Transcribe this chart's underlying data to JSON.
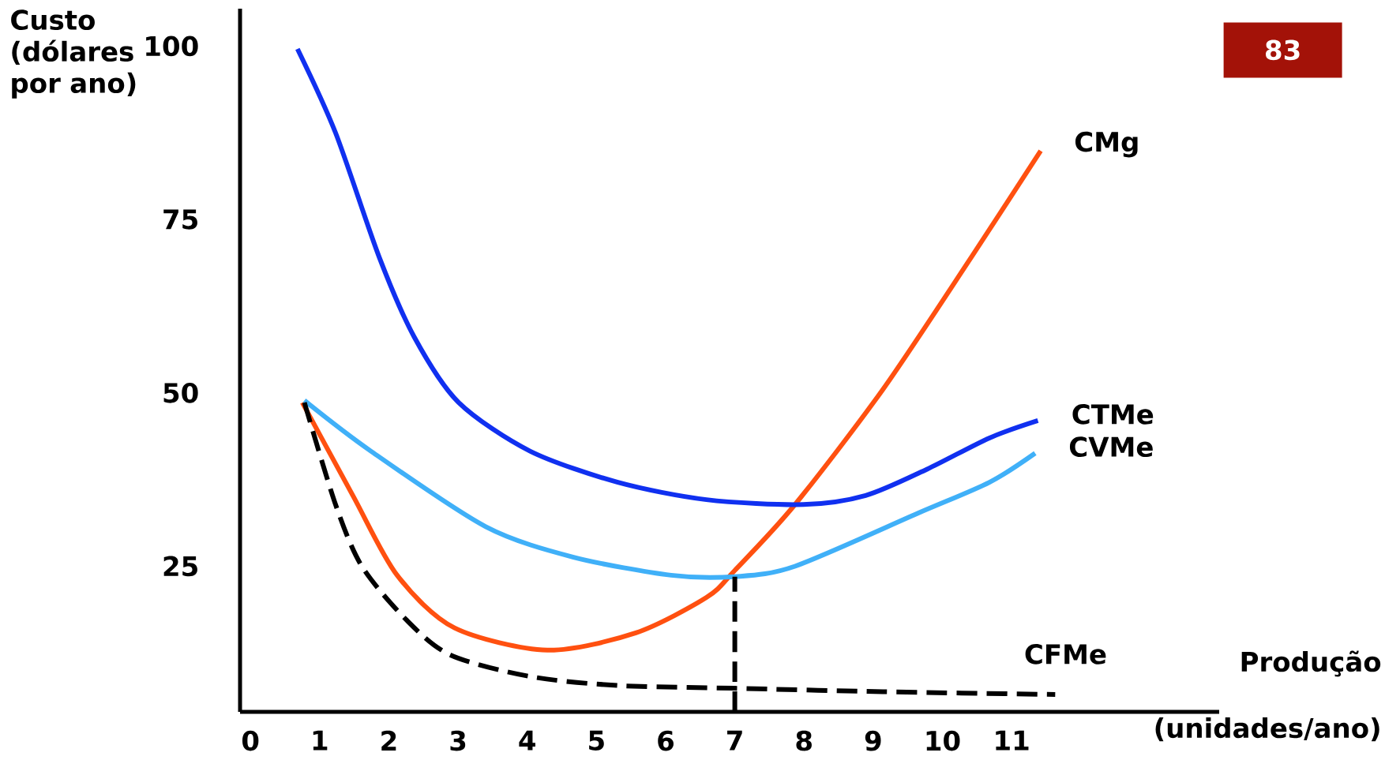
{
  "chart_data": {
    "type": "line",
    "xlabel": "Produção (unidades/ano)",
    "ylabel": "Custo (dólares por ano)",
    "annotations": [
      "83"
    ],
    "xlim": [
      -0.15,
      14.0
    ],
    "ylim": [
      4,
      105.4
    ],
    "xticks": [
      0,
      1,
      2,
      3,
      4,
      5,
      6,
      7,
      8,
      9,
      10,
      11
    ],
    "yticks": [
      25,
      50,
      75,
      100
    ],
    "series": [
      {
        "name": "CMg",
        "color": "#ff5010",
        "x": [
          0.75,
          1.48,
          2.12,
          2.95,
          4.29,
          5.57,
          6.59,
          7,
          7.87,
          9.14,
          10.42,
          11.42
        ],
        "values": [
          48.6,
          35.2,
          23.7,
          16.1,
          12.9,
          15.4,
          20.5,
          24.4,
          33.9,
          50.5,
          69.6,
          84.9
        ]
      },
      {
        "name": "CTMe",
        "color": "#1030f0",
        "x": [
          0.68,
          1.23,
          1.86,
          2.37,
          3.01,
          4.04,
          5.31,
          6.59,
          7.99,
          8.89,
          9.78,
          10.68,
          11.38
        ],
        "values": [
          99.6,
          87.5,
          69.6,
          58,
          48.6,
          41.6,
          37.1,
          34.6,
          33.9,
          35.2,
          39,
          43.5,
          46
        ]
      },
      {
        "name": "CVMe",
        "color": "#40b0f8",
        "x": [
          0.78,
          1.74,
          3.4,
          4.67,
          6.08,
          7,
          7.87,
          9.66,
          10.68,
          11.34
        ],
        "values": [
          48.9,
          41.6,
          30.7,
          26.3,
          23.7,
          23.5,
          25,
          32.7,
          37.1,
          41.3
        ]
      },
      {
        "name": "CFMe",
        "color": "#000000",
        "line_style": "dashed",
        "x": [
          0.78,
          1.23,
          1.61,
          2.25,
          2.89,
          4.04,
          5.31,
          7,
          9.14,
          11.63
        ],
        "values": [
          48.6,
          33.9,
          25,
          17.3,
          12.2,
          9.1,
          7.8,
          7.4,
          6.9,
          6.5
        ]
      },
      {
        "color": "#000000",
        "line_style": "dashed",
        "x": [
          7,
          7
        ],
        "values": [
          4,
          23.5
        ]
      }
    ]
  }
}
